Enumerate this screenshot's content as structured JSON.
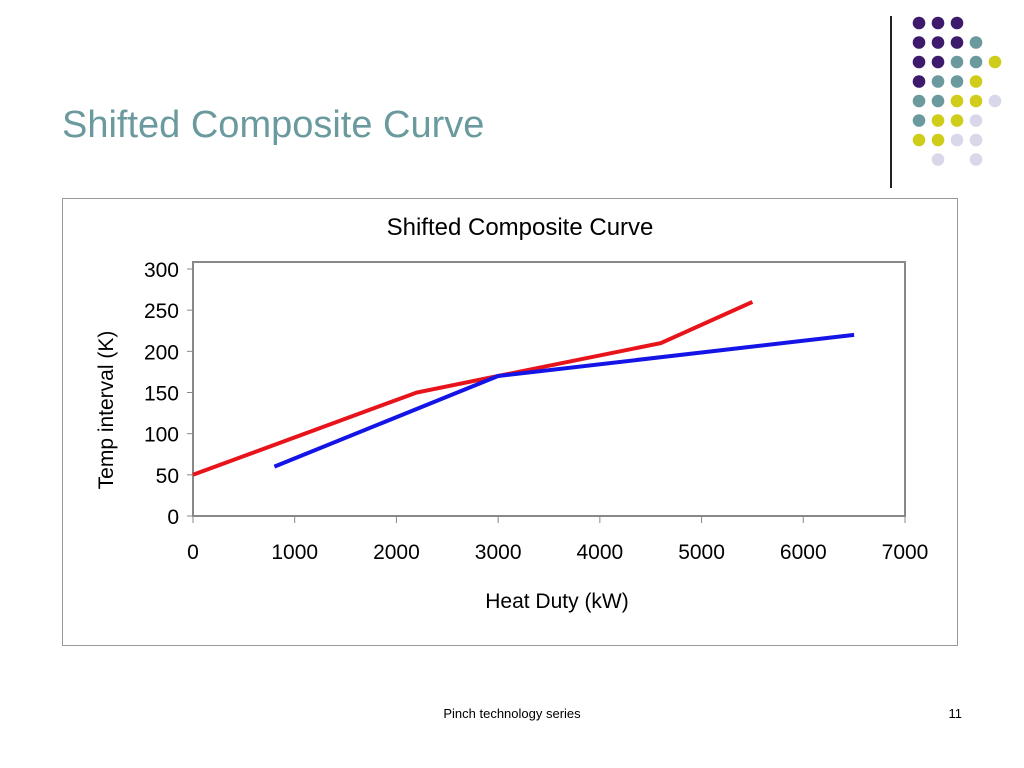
{
  "slide": {
    "title": "Shifted Composite Curve",
    "footer": "Pinch technology series",
    "page_number": "11"
  },
  "colors": {
    "title": "#6a9a9e",
    "dot_purple": "#3d1a6b",
    "dot_teal": "#6a9a9e",
    "dot_yellow": "#cfcc1a",
    "dot_lavender": "#d8d8ea",
    "hot_curve": "#e8141c",
    "cold_curve": "#1414e6"
  },
  "chart_data": {
    "type": "line",
    "title": "Shifted Composite Curve",
    "xlabel": "Heat Duty (kW)",
    "ylabel": "Temp interval (K)",
    "xlim": [
      0,
      7000
    ],
    "ylim": [
      0,
      300
    ],
    "x_ticks": [
      0,
      1000,
      2000,
      3000,
      4000,
      5000,
      6000,
      7000
    ],
    "y_ticks": [
      0,
      50,
      100,
      150,
      200,
      250,
      300
    ],
    "grid": false,
    "series": [
      {
        "color": "#e8141c",
        "x": [
          0,
          2200,
          3000,
          4600,
          5500
        ],
        "y": [
          50,
          150,
          170,
          210,
          260
        ]
      },
      {
        "color": "#1414e6",
        "x": [
          800,
          3000,
          6500
        ],
        "y": [
          60,
          170,
          220
        ]
      }
    ]
  }
}
